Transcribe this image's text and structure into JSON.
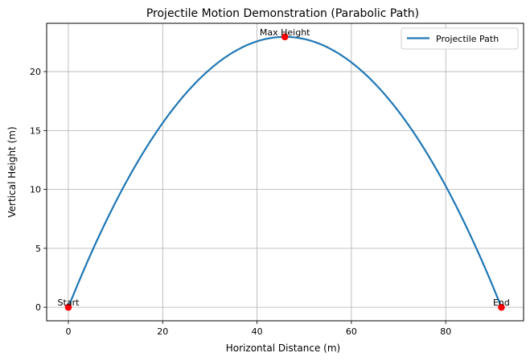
{
  "chart_data": {
    "type": "line",
    "title": "Projectile Motion Demonstration (Parabolic Path)",
    "xlabel": "Horizontal Distance (m)",
    "ylabel": "Vertical Height (m)",
    "xlim": [
      -4.6,
      96.5
    ],
    "ylim": [
      -1.15,
      24.1
    ],
    "xticks": [
      0,
      20,
      40,
      60,
      80
    ],
    "xtick_labels": [
      "0",
      "20",
      "40",
      "60",
      "80"
    ],
    "yticks": [
      0,
      5,
      10,
      15,
      20
    ],
    "ytick_labels": [
      "0",
      "5",
      "10",
      "15",
      "20"
    ],
    "grid": true,
    "legend_position": "upper right",
    "series": [
      {
        "name": "Projectile Path",
        "color": "#1f77b4",
        "peak": {
          "x": 45.9,
          "y": 22.95
        },
        "x_range": [
          0,
          91.8
        ]
      }
    ],
    "annotations": [
      {
        "label": "Start",
        "x": 0,
        "y": 0
      },
      {
        "label": "Max Height",
        "x": 45.9,
        "y": 22.95
      },
      {
        "label": "End",
        "x": 91.8,
        "y": 0
      }
    ],
    "marker_color": "#ff0000"
  }
}
